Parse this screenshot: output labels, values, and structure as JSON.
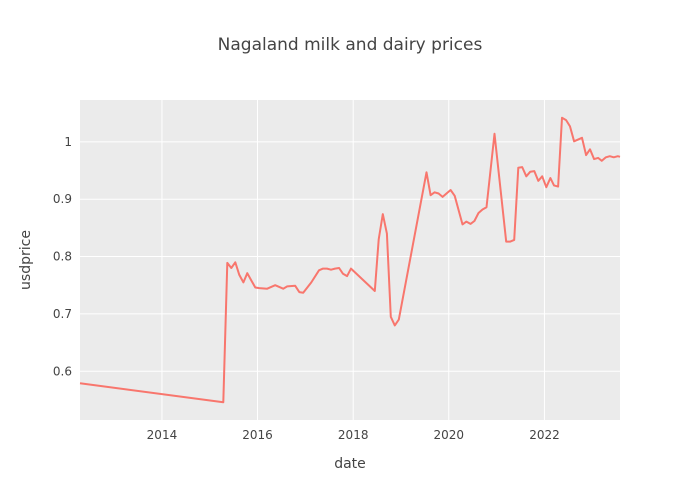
{
  "chart_data": {
    "type": "line",
    "title": "Nagaland milk and dairy prices",
    "xlabel": "date",
    "ylabel": "usdprice",
    "xlim": [
      "2012-04-15",
      "2023-08-01"
    ],
    "ylim": [
      0.515,
      1.073
    ],
    "x_ticks": [
      "2014",
      "2016",
      "2018",
      "2020",
      "2022"
    ],
    "y_ticks": [
      0.6,
      0.7,
      0.8,
      0.9,
      1
    ],
    "grid": true,
    "colors": {
      "plot_bg": "#ebebeb",
      "grid": "#ffffff",
      "line": "#f8766d"
    },
    "series": [
      {
        "color": "#f8766d",
        "x": [
          "2012-04-15",
          "2015-04-15",
          "2015-05-15",
          "2015-06-15",
          "2015-07-15",
          "2015-08-15",
          "2015-09-15",
          "2015-10-15",
          "2015-11-15",
          "2015-12-15",
          "2016-01-15",
          "2016-03-15",
          "2016-05-15",
          "2016-07-15",
          "2016-08-15",
          "2016-10-15",
          "2016-11-15",
          "2016-12-15",
          "2017-02-15",
          "2017-04-15",
          "2017-05-15",
          "2017-06-15",
          "2017-07-15",
          "2017-08-15",
          "2017-09-15",
          "2017-10-15",
          "2017-11-15",
          "2017-12-15",
          "2018-06-15",
          "2018-07-15",
          "2018-08-15",
          "2018-09-15",
          "2018-10-15",
          "2018-11-15",
          "2018-12-15",
          "2019-07-15",
          "2019-08-15",
          "2019-09-15",
          "2019-10-15",
          "2019-11-15",
          "2019-12-15",
          "2020-01-15",
          "2020-02-15",
          "2020-04-15",
          "2020-05-15",
          "2020-06-15",
          "2020-07-15",
          "2020-08-15",
          "2020-09-15",
          "2020-10-15",
          "2020-12-15",
          "2021-03-15",
          "2021-04-15",
          "2021-05-15",
          "2021-06-15",
          "2021-07-15",
          "2021-08-15",
          "2021-09-15",
          "2021-10-15",
          "2021-11-15",
          "2021-12-15",
          "2022-01-15",
          "2022-02-15",
          "2022-03-15",
          "2022-04-15",
          "2022-05-15",
          "2022-06-15",
          "2022-07-15",
          "2022-08-15",
          "2022-10-15",
          "2022-11-15",
          "2022-12-15",
          "2023-01-15",
          "2023-02-15",
          "2023-03-15",
          "2023-04-15",
          "2023-05-15",
          "2023-06-15",
          "2023-07-15",
          "2023-08-01"
        ],
        "y": [
          0.579,
          0.546,
          0.789,
          0.78,
          0.79,
          0.768,
          0.755,
          0.771,
          0.758,
          0.746,
          0.745,
          0.744,
          0.75,
          0.744,
          0.748,
          0.749,
          0.738,
          0.737,
          0.755,
          0.776,
          0.779,
          0.779,
          0.777,
          0.779,
          0.78,
          0.77,
          0.766,
          0.779,
          0.74,
          0.83,
          0.874,
          0.84,
          0.695,
          0.68,
          0.69,
          0.947,
          0.907,
          0.912,
          0.91,
          0.904,
          0.91,
          0.916,
          0.906,
          0.856,
          0.861,
          0.857,
          0.862,
          0.876,
          0.882,
          0.886,
          1.014,
          0.826,
          0.826,
          0.829,
          0.955,
          0.956,
          0.94,
          0.948,
          0.949,
          0.932,
          0.94,
          0.921,
          0.937,
          0.924,
          0.922,
          1.042,
          1.038,
          1.027,
          1.001,
          1.007,
          0.977,
          0.987,
          0.97,
          0.972,
          0.967,
          0.973,
          0.975,
          0.973,
          0.975,
          0.974
        ]
      }
    ]
  }
}
